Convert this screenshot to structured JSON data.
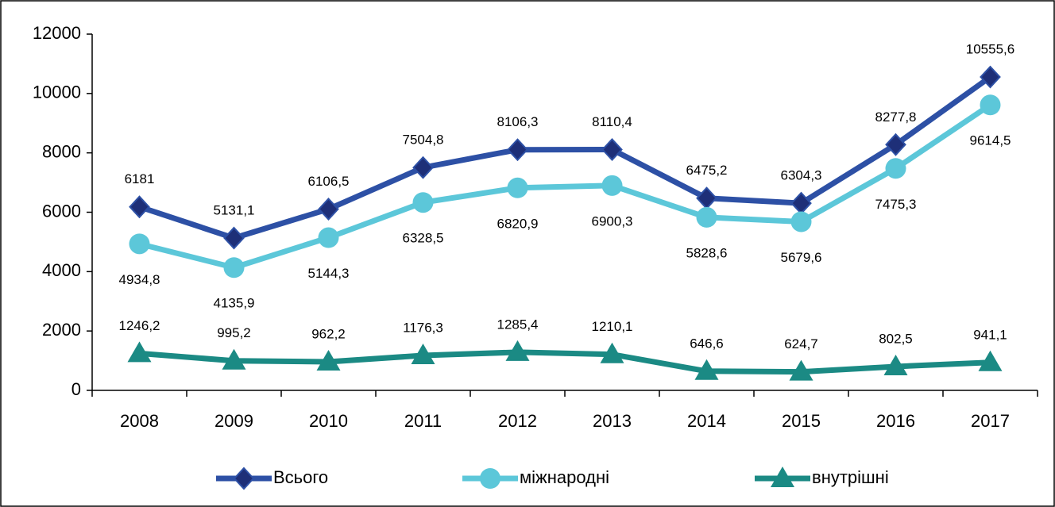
{
  "chart_data": {
    "type": "line",
    "categories": [
      "2008",
      "2009",
      "2010",
      "2011",
      "2012",
      "2013",
      "2014",
      "2015",
      "2016",
      "2017"
    ],
    "series": [
      {
        "name": "Всього",
        "color": "#2d50a5",
        "marker_color": "#1e2f78",
        "marker": "diamond",
        "values": [
          6181,
          5131.1,
          6106.5,
          7504.8,
          8106.3,
          8110.4,
          6475.2,
          6304.3,
          8277.8,
          10555.6
        ],
        "value_labels": [
          "6181",
          "5131,1",
          "6106,5",
          "7504,8",
          "8106,3",
          "8110,4",
          "6475,2",
          "6304,3",
          "8277,8",
          "10555,6"
        ]
      },
      {
        "name": "міжнародні",
        "color": "#5cc7d9",
        "marker_color": "#5cc7d9",
        "marker": "circle",
        "values": [
          4934.8,
          4135.9,
          5144.3,
          6328.5,
          6820.9,
          6900.3,
          5828.6,
          5679.6,
          7475.3,
          9614.5
        ],
        "value_labels": [
          "4934,8",
          "4135,9",
          "5144,3",
          "6328,5",
          "6820,9",
          "6900,3",
          "5828,6",
          "5679,6",
          "7475,3",
          "9614,5"
        ]
      },
      {
        "name": "внутрішні",
        "color": "#1b8a84",
        "marker_color": "#1b8a84",
        "marker": "triangle",
        "values": [
          1246.2,
          995.2,
          962.2,
          1176.3,
          1285.4,
          1210.1,
          646.6,
          624.7,
          802.5,
          941.1
        ],
        "value_labels": [
          "1246,2",
          "995,2",
          "962,2",
          "1176,3",
          "1285,4",
          "1210,1",
          "646,6",
          "624,7",
          "802,5",
          "941,1"
        ]
      }
    ],
    "ylim": [
      0,
      12000
    ],
    "yticks": [
      0,
      2000,
      4000,
      6000,
      8000,
      10000,
      12000
    ],
    "grid": false,
    "legend": "bottom"
  }
}
